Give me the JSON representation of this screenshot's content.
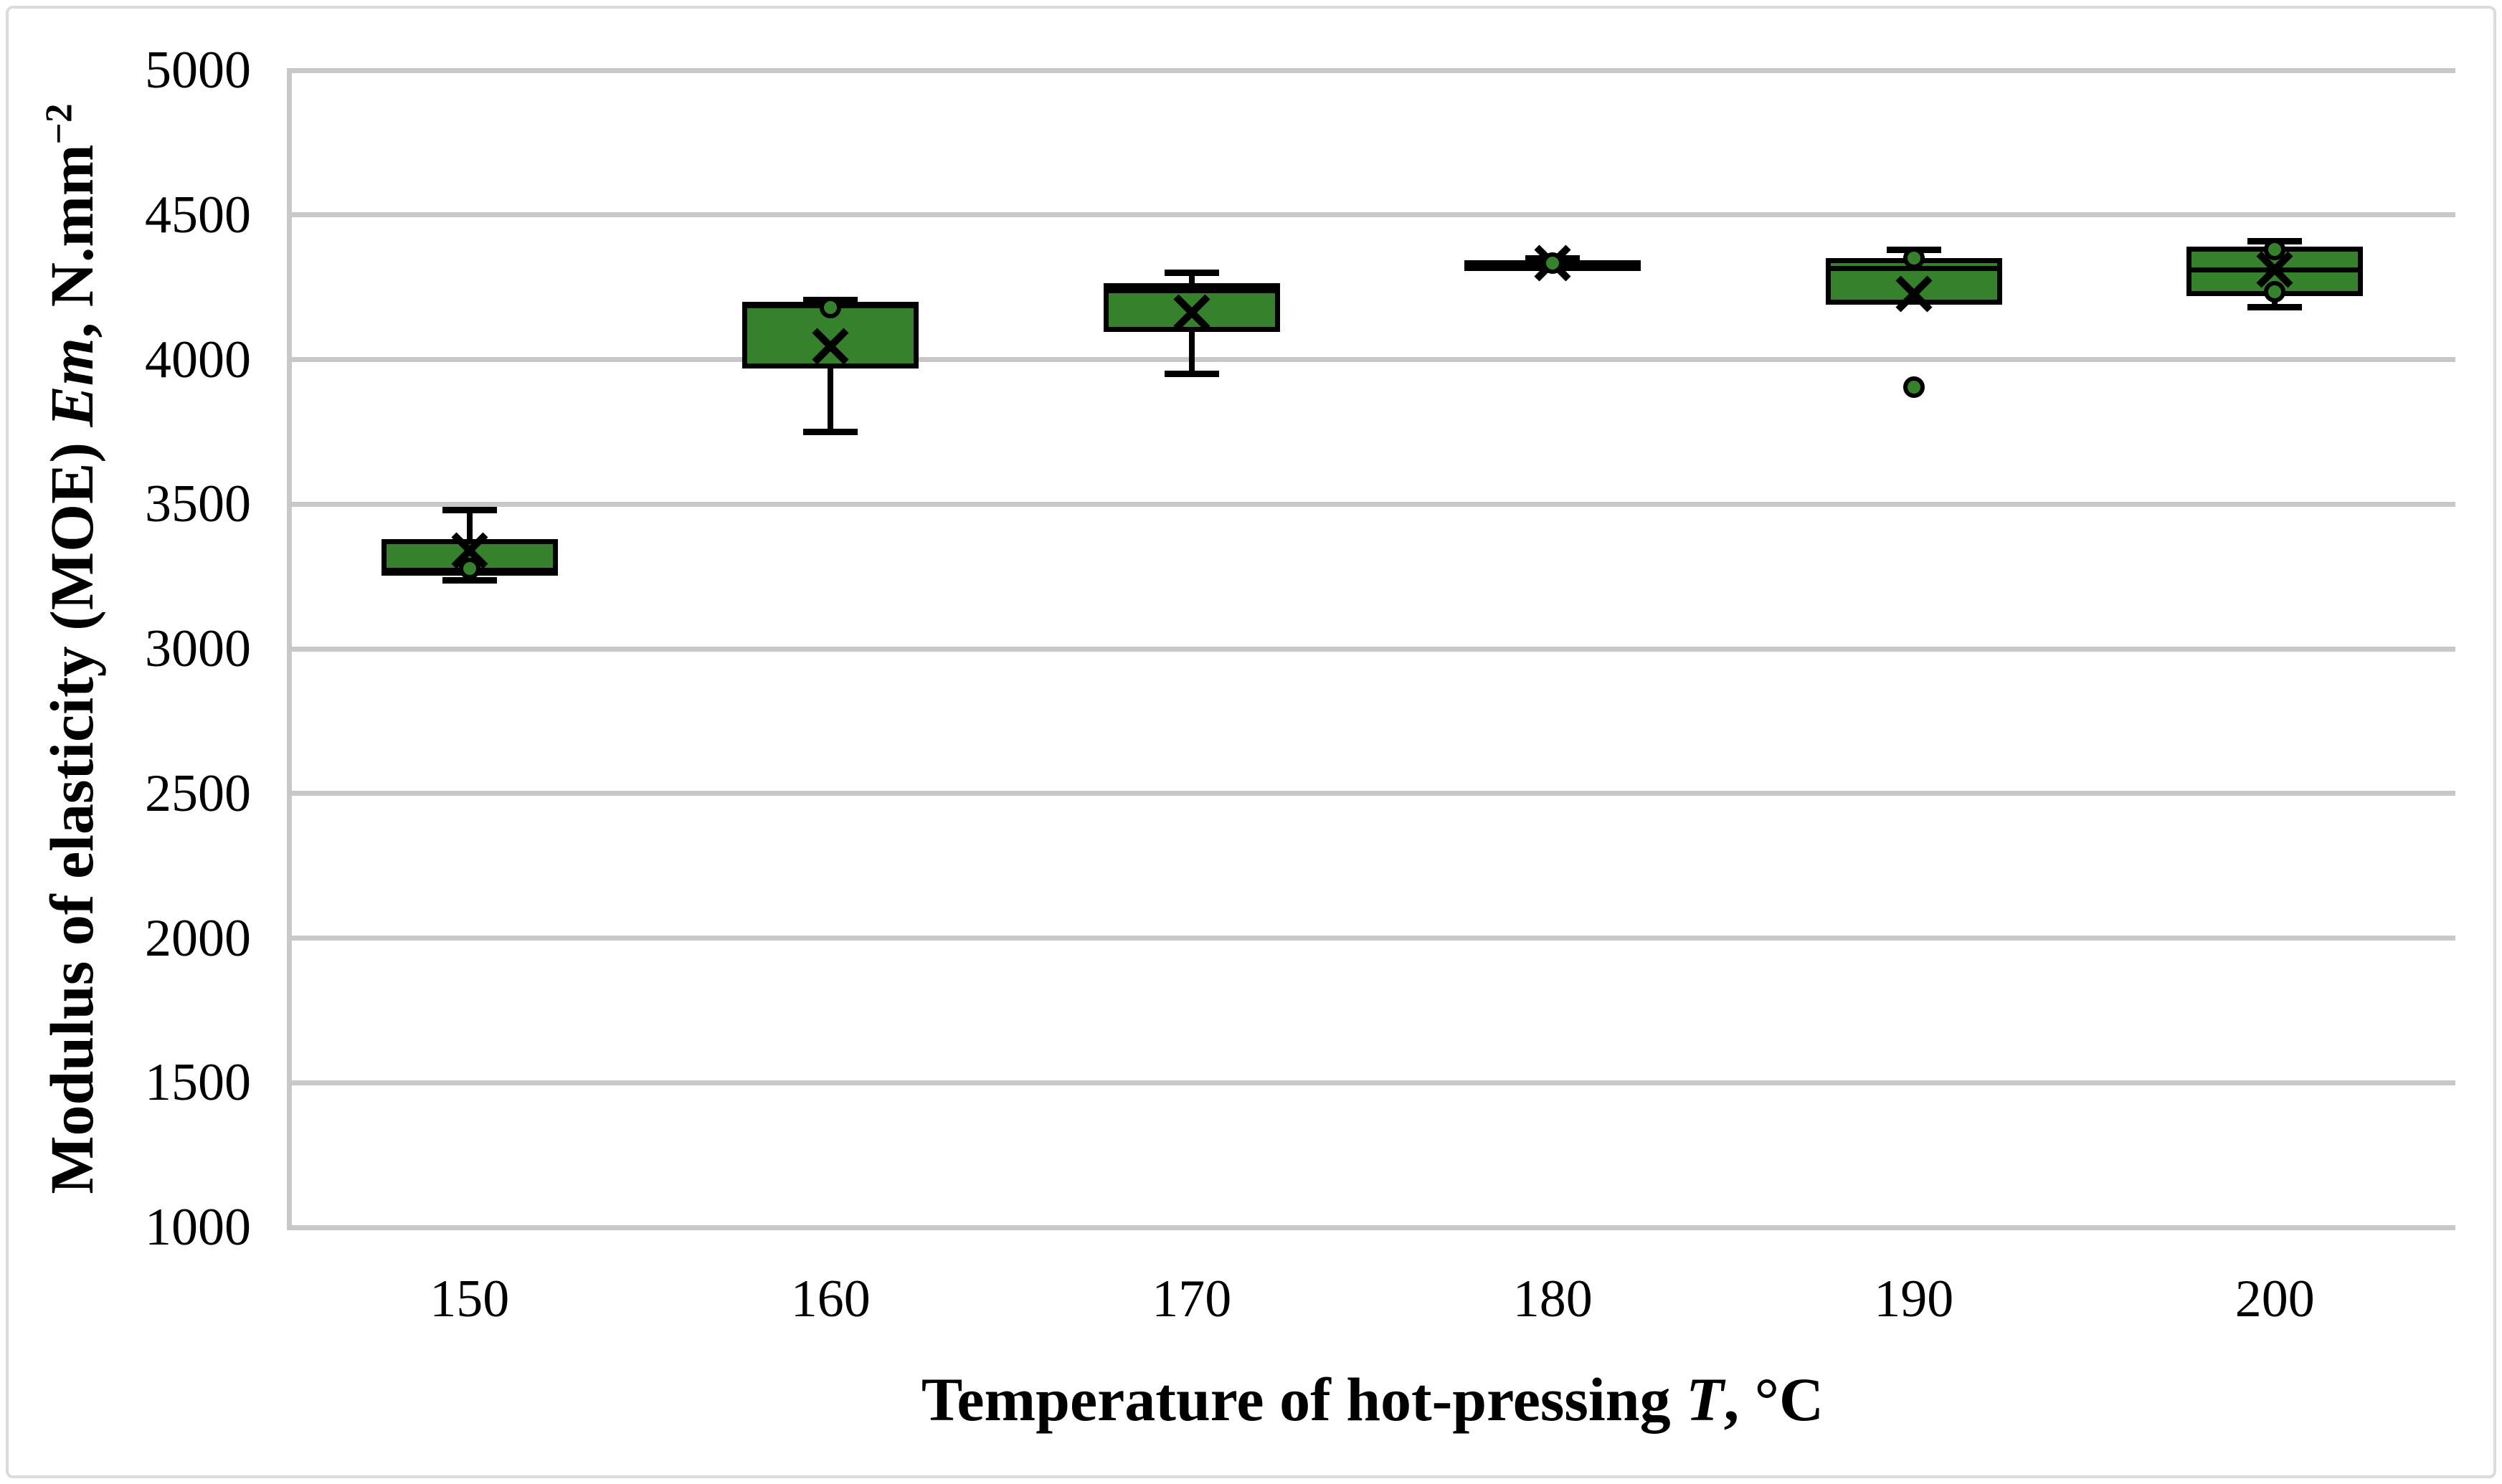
{
  "figure": {
    "background": "#ffffff",
    "border_color": "#DBDBDB"
  },
  "y_axis": {
    "title": {
      "prefix": "Modulus of elasticity (MOE) ",
      "italic": "Em",
      "mid": ", N.mm",
      "sup": "−2"
    },
    "tick_labels": [
      "5000",
      "4500",
      "4000",
      "3500",
      "3000",
      "2500",
      "2000",
      "1500",
      "1000"
    ]
  },
  "x_axis": {
    "title": {
      "prefix": "Temperature of hot-pressing ",
      "italic": "T",
      "suffix": ", °C"
    },
    "tick_labels": [
      "150",
      "160",
      "170",
      "180",
      "190",
      "200"
    ]
  },
  "chart_data": {
    "type": "box",
    "title": "",
    "xlabel": "Temperature of hot-pressing T, °C",
    "ylabel": "Modulus of elasticity (MOE) Em, N.mm−2",
    "categories": [
      "150",
      "160",
      "170",
      "180",
      "190",
      "200"
    ],
    "ylim": [
      1000,
      5000
    ],
    "y_ticks": [
      5000,
      4500,
      4000,
      3500,
      3000,
      2500,
      2000,
      1500,
      1000
    ],
    "grid": "horizontal-only",
    "legend": "none",
    "box_fill": "#36812B",
    "line_color": "#000000",
    "gridline_color": "#C8C8C8",
    "boxes": [
      {
        "category": "150",
        "min": 3237,
        "q1": 3253,
        "median": 3272,
        "q3": 3380,
        "max": 3480,
        "mean": 3340,
        "points": [
          3278
        ],
        "outliers": []
      },
      {
        "category": "160",
        "min": 3750,
        "q1": 3970,
        "median": 4190,
        "q3": 4195,
        "max": 4205,
        "mean": 4045,
        "points": [
          4180
        ],
        "outliers": []
      },
      {
        "category": "170",
        "min": 3950,
        "q1": 4095,
        "median": 4238,
        "q3": 4265,
        "max": 4300,
        "mean": 4163,
        "points": [],
        "outliers": []
      },
      {
        "category": "180",
        "min": 4320,
        "q1": 4327,
        "median": 4334,
        "q3": 4341,
        "max": 4350,
        "mean": 4334,
        "points": [
          4334
        ],
        "outliers": []
      },
      {
        "category": "190",
        "min": 4190,
        "q1": 4190,
        "median": 4315,
        "q3": 4350,
        "max": 4380,
        "mean": 4228,
        "points": [
          4350
        ],
        "outliers": [
          3905
        ]
      },
      {
        "category": "200",
        "min": 4180,
        "q1": 4220,
        "median": 4310,
        "q3": 4390,
        "max": 4410,
        "mean": 4310,
        "points": [
          4380,
          4235
        ],
        "outliers": []
      }
    ]
  }
}
